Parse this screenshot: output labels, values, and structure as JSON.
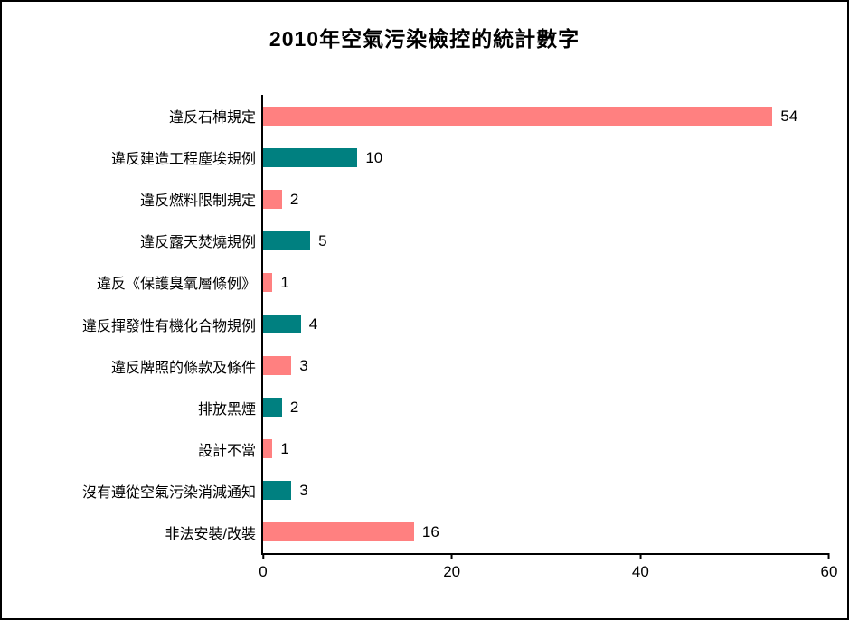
{
  "chart_data": {
    "type": "bar",
    "orientation": "horizontal",
    "title": "2010年空氣污染檢控的統計數字",
    "categories": [
      "違反石棉規定",
      "違反建造工程塵埃規例",
      "違反燃料限制規定",
      "違反露天焚燒規例",
      "違反《保護臭氧層條例》",
      "違反揮發性有機化合物規例",
      "違反牌照的條款及條件",
      "排放黑煙",
      "設計不當",
      "沒有遵從空氣污染消減通知",
      "非法安裝/改裝"
    ],
    "values": [
      54,
      10,
      2,
      5,
      1,
      4,
      3,
      2,
      1,
      3,
      16
    ],
    "bar_colors": [
      "#FF8080",
      "#008080",
      "#FF8080",
      "#008080",
      "#FF8080",
      "#008080",
      "#FF8080",
      "#008080",
      "#FF8080",
      "#008080",
      "#FF8080"
    ],
    "value_labels": [
      "54",
      "10",
      "2",
      "5",
      "1",
      "4",
      "3",
      "2",
      "1",
      "3",
      "16"
    ],
    "xlabel": "",
    "ylabel": "",
    "xlim": [
      0,
      60
    ],
    "x_ticks": [
      0,
      20,
      40,
      60
    ],
    "x_tick_labels": [
      "0",
      "20",
      "40",
      "60"
    ],
    "grid": false,
    "legend_position": "none",
    "colors": {
      "salmon": "#FF8080",
      "teal": "#008080",
      "axis": "#000000",
      "background": "#FFFFFF",
      "text": "#000000"
    }
  }
}
